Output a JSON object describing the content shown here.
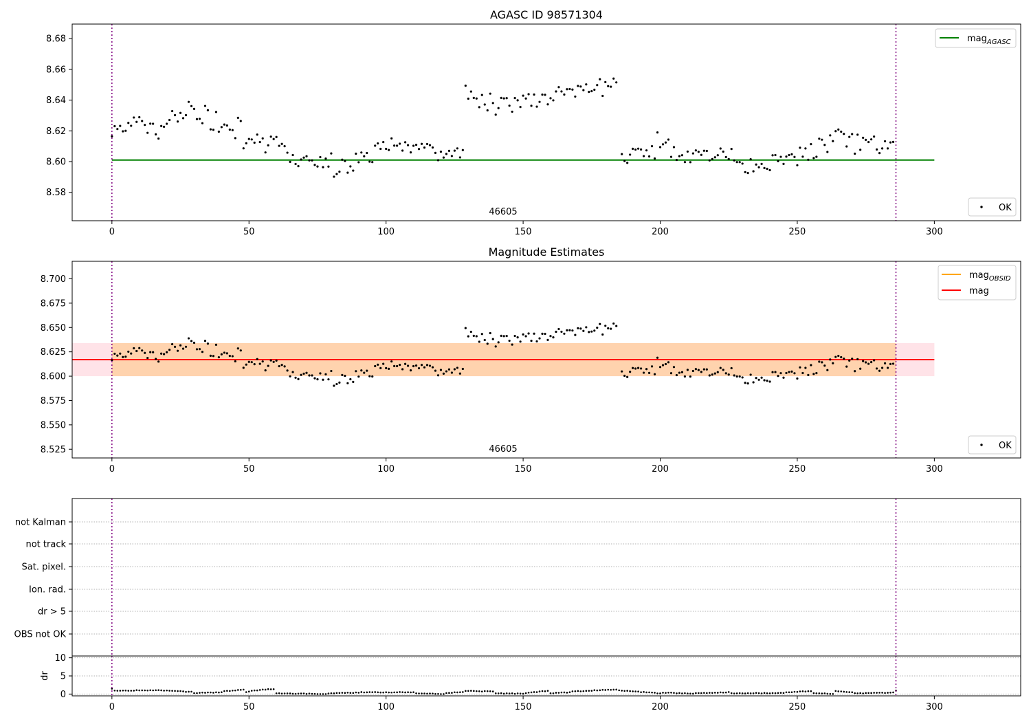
{
  "chart_data": [
    {
      "type": "scatter",
      "title": "AGASC ID 98571304",
      "xlim": [
        -14.5,
        331.5
      ],
      "ylim": [
        8.5615,
        8.6895
      ],
      "xticks": [
        "0",
        "50",
        "100",
        "150",
        "200",
        "250",
        "300"
      ],
      "yticks": [
        "8.58",
        "8.60",
        "8.62",
        "8.64",
        "8.66",
        "8.68"
      ],
      "legend_lines": [
        {
          "name": "mag",
          "sub": "AGASC",
          "color": "#008000"
        }
      ],
      "legend_points": [
        {
          "name": "OK",
          "color": "#000000"
        }
      ],
      "hlines": [
        {
          "y": 8.601,
          "x0": 0,
          "x1": 300,
          "color": "#008000"
        }
      ],
      "vlines": [
        {
          "x": 0,
          "color": "#800080"
        },
        {
          "x": 286,
          "color": "#800080"
        }
      ],
      "obsid_label": "46605",
      "grid": false,
      "legend_placement": "upper-right (lines), lower-right (points)"
    },
    {
      "type": "scatter",
      "title": "Magnitude Estimates",
      "xlim": [
        -14.5,
        331.5
      ],
      "ylim": [
        8.516,
        8.718
      ],
      "xticks": [
        "0",
        "50",
        "100",
        "150",
        "200",
        "250",
        "300"
      ],
      "yticks": [
        "8.525",
        "8.550",
        "8.575",
        "8.600",
        "8.625",
        "8.650",
        "8.675",
        "8.700"
      ],
      "legend_lines": [
        {
          "name": "mag",
          "sub": "OBSID",
          "color": "#ffa500"
        },
        {
          "name": "mag",
          "sub": "",
          "color": "#ff0000"
        }
      ],
      "legend_points": [
        {
          "name": "OK",
          "color": "#000000"
        }
      ],
      "bands": [
        {
          "y0": 8.6,
          "y1": 8.634,
          "x0": -14.5,
          "x1": 300,
          "color": "#ffc0cb",
          "opacity": 0.45
        },
        {
          "y0": 8.6,
          "y1": 8.634,
          "x0": 0,
          "x1": 286,
          "color": "#ffa500",
          "opacity": 0.25
        }
      ],
      "hlines": [
        {
          "y": 8.617,
          "x0": 0,
          "x1": 286,
          "color": "#ffa500"
        },
        {
          "y": 8.617,
          "x0": -14.5,
          "x1": 300,
          "color": "#ff0000"
        }
      ],
      "vlines": [
        {
          "x": 0,
          "color": "#800080"
        },
        {
          "x": 286,
          "color": "#800080"
        }
      ],
      "obsid_label": "46605",
      "grid": false,
      "legend_placement": "upper-right (lines), lower-right (points)"
    },
    {
      "type": "scatter",
      "title": "",
      "xlim": [
        -14.5,
        331.5
      ],
      "flag_labels": [
        "not Kalman",
        "not track",
        "Sat. pixel.",
        "Ion. rad.",
        "dr > 5",
        "OBS not OK"
      ],
      "grid": true,
      "vlines": [
        {
          "x": 0,
          "color": "#800080"
        },
        {
          "x": 286,
          "color": "#800080"
        }
      ]
    },
    {
      "type": "scatter",
      "title": "",
      "ylabel": "dr",
      "xlim": [
        -14.5,
        331.5
      ],
      "ylim": [
        -0.5,
        10.5
      ],
      "xticks": [
        "0",
        "50",
        "100",
        "150",
        "200",
        "250",
        "300"
      ],
      "yticks": [
        "0",
        "5",
        "10"
      ],
      "grid": true,
      "vlines": [
        {
          "x": 0,
          "color": "#800080"
        },
        {
          "x": 286,
          "color": "#800080"
        }
      ],
      "dr_segments": [
        {
          "x0": 0,
          "x1": 0.5,
          "v0": 1.5,
          "v1": 1.5
        },
        {
          "x0": 1,
          "x1": 8,
          "v0": 1.0,
          "v1": 0.9
        },
        {
          "x0": 9,
          "x1": 20,
          "v0": 1.0,
          "v1": 1.0
        },
        {
          "x0": 21,
          "x1": 29,
          "v0": 0.9,
          "v1": 0.6
        },
        {
          "x0": 30,
          "x1": 40,
          "v0": 0.3,
          "v1": 0.5
        },
        {
          "x0": 41,
          "x1": 48,
          "v0": 0.8,
          "v1": 1.2
        },
        {
          "x0": 49,
          "x1": 51,
          "v0": 0.5,
          "v1": 0.9
        },
        {
          "x0": 52,
          "x1": 59,
          "v0": 1.0,
          "v1": 1.4
        },
        {
          "x0": 60,
          "x1": 78,
          "v0": 0.2,
          "v1": 0.0
        },
        {
          "x0": 79,
          "x1": 90,
          "v0": 0.2,
          "v1": 0.4
        },
        {
          "x0": 91,
          "x1": 110,
          "v0": 0.5,
          "v1": 0.5
        },
        {
          "x0": 111,
          "x1": 121,
          "v0": 0.2,
          "v1": 0.0
        },
        {
          "x0": 122,
          "x1": 128,
          "v0": 0.3,
          "v1": 0.6
        },
        {
          "x0": 129,
          "x1": 139,
          "v0": 0.9,
          "v1": 0.7
        },
        {
          "x0": 140,
          "x1": 150,
          "v0": 0.2,
          "v1": 0.1
        },
        {
          "x0": 151,
          "x1": 159,
          "v0": 0.3,
          "v1": 0.9
        },
        {
          "x0": 160,
          "x1": 167,
          "v0": 0.2,
          "v1": 0.5
        },
        {
          "x0": 168,
          "x1": 184,
          "v0": 0.7,
          "v1": 1.3
        },
        {
          "x0": 185,
          "x1": 200,
          "v0": 1.0,
          "v1": 0.2
        },
        {
          "x0": 201,
          "x1": 212,
          "v0": 0.4,
          "v1": 0.1
        },
        {
          "x0": 213,
          "x1": 225,
          "v0": 0.2,
          "v1": 0.5
        },
        {
          "x0": 226,
          "x1": 245,
          "v0": 0.2,
          "v1": 0.3
        },
        {
          "x0": 246,
          "x1": 255,
          "v0": 0.5,
          "v1": 0.8
        },
        {
          "x0": 256,
          "x1": 263,
          "v0": 0.3,
          "v1": 0.0
        },
        {
          "x0": 264,
          "x1": 270,
          "v0": 0.8,
          "v1": 0.5
        },
        {
          "x0": 271,
          "x1": 285,
          "v0": 0.2,
          "v1": 0.4
        },
        {
          "x0": 286,
          "x1": 286,
          "v0": 0.9,
          "v1": 0.9
        }
      ]
    }
  ],
  "mag_segments": [
    {
      "x0": 0,
      "x1": 7,
      "v0": 8.621,
      "v1": 8.622,
      "amp": 0.005,
      "gap": 1
    },
    {
      "x0": 8,
      "x1": 18,
      "v0": 8.624,
      "v1": 8.619,
      "amp": 0.007,
      "gap": 1
    },
    {
      "x0": 19,
      "x1": 30,
      "v0": 8.626,
      "v1": 8.637,
      "amp": 0.006,
      "gap": 1
    },
    {
      "x0": 31,
      "x1": 47,
      "v0": 8.63,
      "v1": 8.622,
      "amp": 0.008,
      "gap": 1
    },
    {
      "x0": 48,
      "x1": 64,
      "v0": 8.612,
      "v1": 8.611,
      "amp": 0.006,
      "gap": 1
    },
    {
      "x0": 65,
      "x1": 80,
      "v0": 8.601,
      "v1": 8.601,
      "amp": 0.005,
      "gap": 1
    },
    {
      "x0": 81,
      "x1": 95,
      "v0": 8.594,
      "v1": 8.605,
      "amp": 0.006,
      "gap": 1
    },
    {
      "x0": 96,
      "x1": 112,
      "v0": 8.613,
      "v1": 8.61,
      "amp": 0.005,
      "gap": 1
    },
    {
      "x0": 113,
      "x1": 128,
      "v0": 8.608,
      "v1": 8.604,
      "amp": 0.006,
      "gap": 1
    },
    {
      "x0": 129,
      "x1": 146,
      "v0": 8.642,
      "v1": 8.636,
      "amp": 0.008,
      "gap": 1
    },
    {
      "x0": 147,
      "x1": 164,
      "v0": 8.64,
      "v1": 8.644,
      "amp": 0.007,
      "gap": 1
    },
    {
      "x0": 165,
      "x1": 184,
      "v0": 8.641,
      "v1": 8.651,
      "amp": 0.006,
      "gap": 1
    },
    {
      "x0": 186,
      "x1": 198,
      "v0": 8.603,
      "v1": 8.606,
      "amp": 0.005,
      "gap": 1
    },
    {
      "x0": 199,
      "x1": 212,
      "v0": 8.616,
      "v1": 8.6,
      "amp": 0.007,
      "gap": 1
    },
    {
      "x0": 213,
      "x1": 229,
      "v0": 8.605,
      "v1": 8.604,
      "amp": 0.005,
      "gap": 1
    },
    {
      "x0": 230,
      "x1": 248,
      "v0": 8.597,
      "v1": 8.601,
      "amp": 0.005,
      "gap": 1
    },
    {
      "x0": 249,
      "x1": 264,
      "v0": 8.602,
      "v1": 8.614,
      "amp": 0.007,
      "gap": 1
    },
    {
      "x0": 265,
      "x1": 285,
      "v0": 8.614,
      "v1": 8.606,
      "amp": 0.008,
      "gap": 1
    }
  ]
}
